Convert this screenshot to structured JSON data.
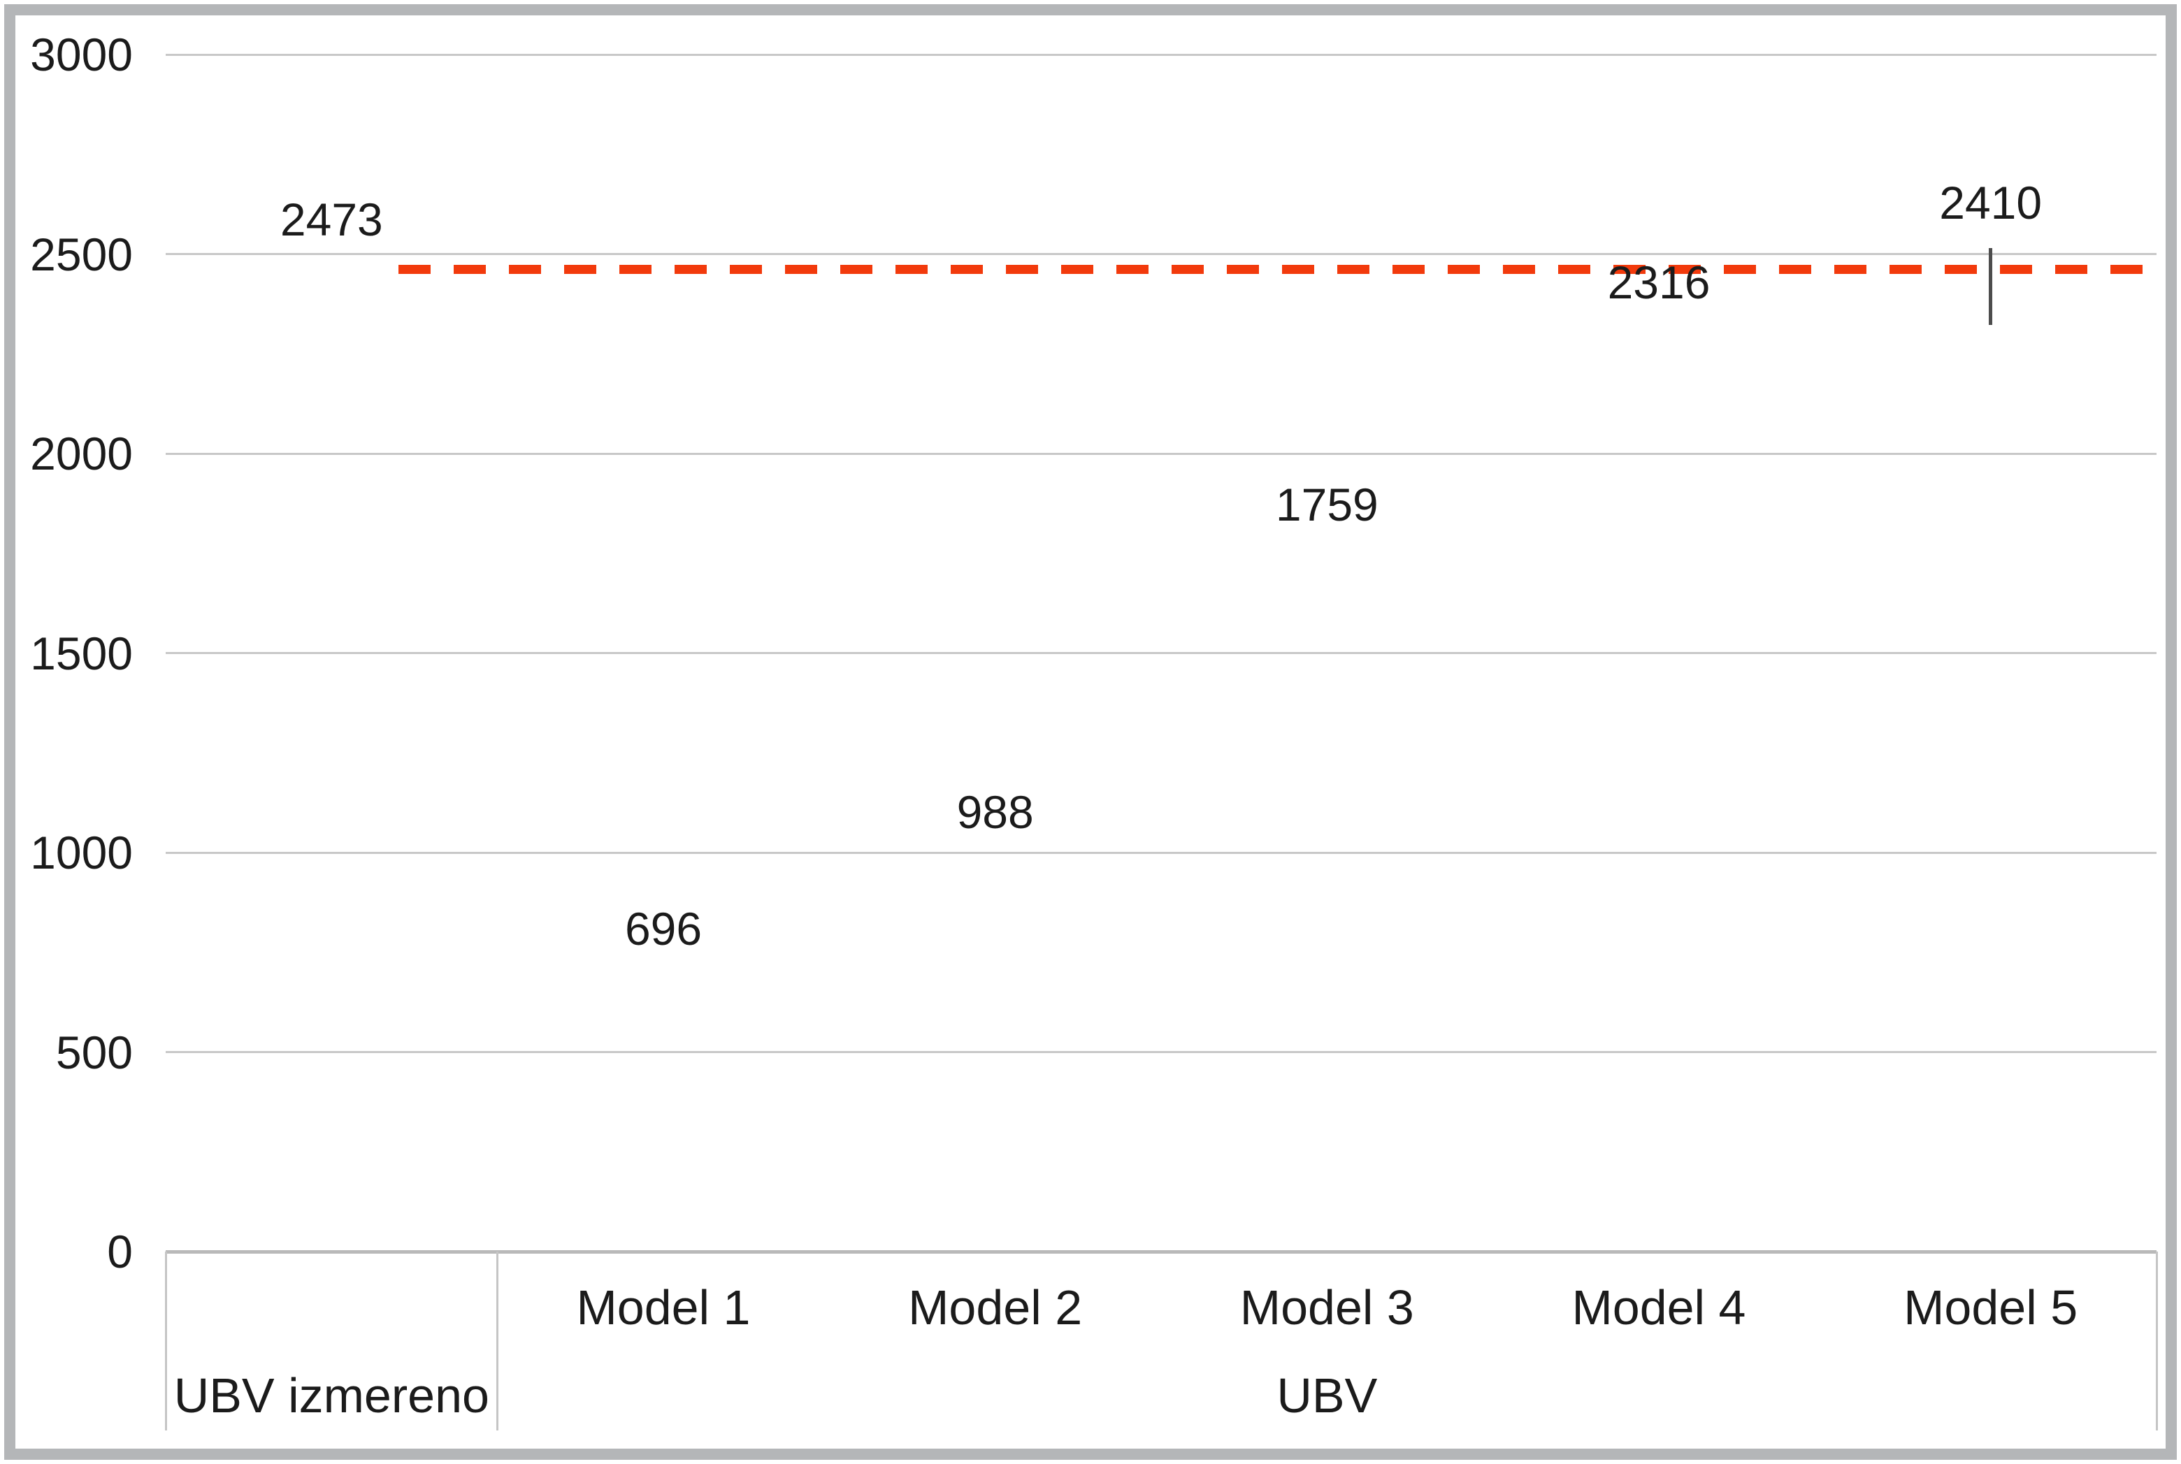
{
  "chart_data": {
    "type": "bar",
    "title": "",
    "categories": [
      "UBV izmereno",
      "Model 1",
      "Model 2",
      "Model 3",
      "Model 4",
      "Model 5"
    ],
    "values": [
      2473,
      696,
      988,
      1759,
      2316,
      2410
    ],
    "data_labels": [
      "2473",
      "696",
      "988",
      "1759",
      "2316",
      "2410"
    ],
    "bar_colors": [
      "#F5420C",
      "#0B6DC4",
      "#0B6DC4",
      "#0B6DC4",
      "#0B6DC4",
      "#0B6DC4"
    ],
    "x_axis": {
      "category_labels": [
        "",
        "Model 1",
        "Model 2",
        "Model 3",
        "Model 4",
        "Model 5"
      ],
      "group_labels": [
        {
          "label": "UBV izmereno",
          "start": 0,
          "end": 0
        },
        {
          "label": "UBV",
          "start": 1,
          "end": 5
        }
      ]
    },
    "y_axis": {
      "min": 0,
      "max": 3000,
      "step": 500,
      "tick_labels": [
        "0",
        "500",
        "1000",
        "1500",
        "2000",
        "2500",
        "3000"
      ]
    },
    "reference_line": {
      "value": 2473,
      "style": "dashed",
      "color": "#F23A0C",
      "from_category": 0
    },
    "error_bar": {
      "category": "Model 5",
      "category_index": 5,
      "top_value": 2515,
      "color": "#4D4D4D"
    },
    "gridlines": "horizontal",
    "legend": "none",
    "ylim": [
      0,
      3000
    ]
  },
  "style": {
    "background": "#FFFFFF",
    "text_color": "#1B1B1B",
    "bar_orange": "#F5420C",
    "bar_blue": "#0B6DC4",
    "dash_color": "#F23A0C",
    "gridline_color": "#C8C8C8",
    "axis_line_color": "#B9B9B9",
    "table_border_color": "#C5C5C5",
    "frame_color": "#B4B6B8"
  }
}
